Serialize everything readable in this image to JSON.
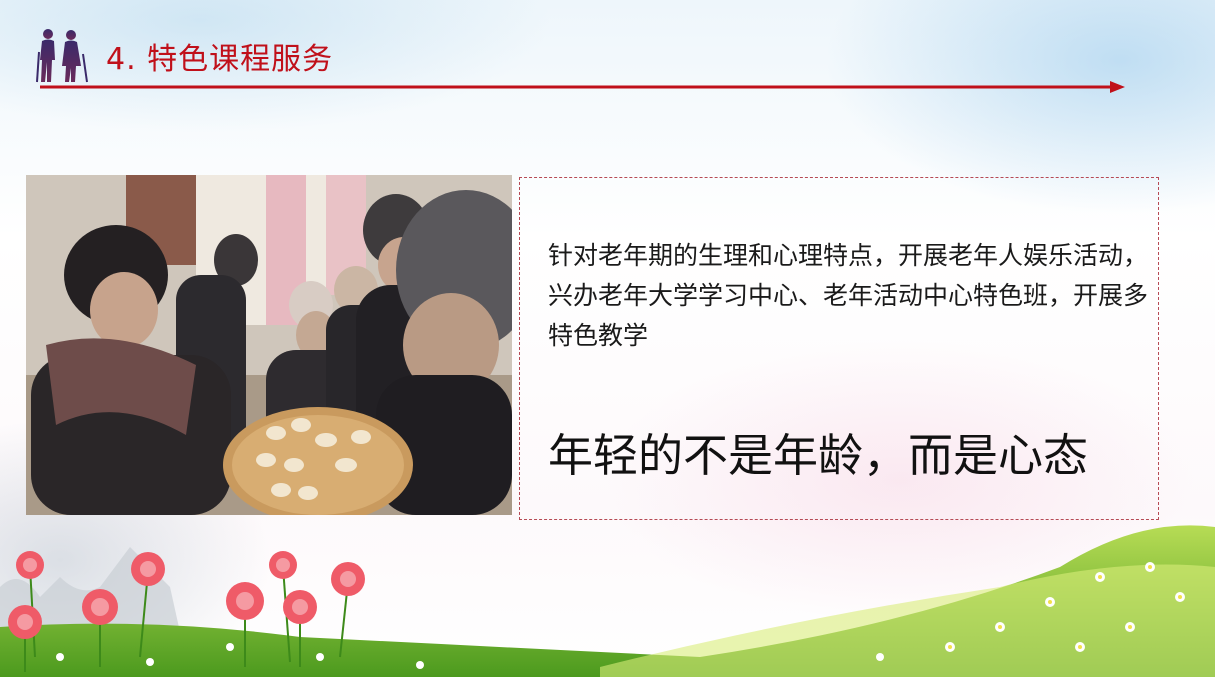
{
  "header": {
    "title": "4. 特色课程服务",
    "icon": "elderly-couple-icon",
    "accent_color": "#c0101a"
  },
  "photo": {
    "subject": "elderly-women-making-dumplings-photo"
  },
  "content": {
    "paragraph": "针对老年期的生理和心理特点，开展老年人娱乐活动，兴办老年大学学习中心、老年活动中心特色班，开展多特色教学",
    "slogan": "年轻的不是年龄，而是心态"
  },
  "decoration": {
    "footer": "flower-meadow",
    "border_color": "#b64a55"
  }
}
